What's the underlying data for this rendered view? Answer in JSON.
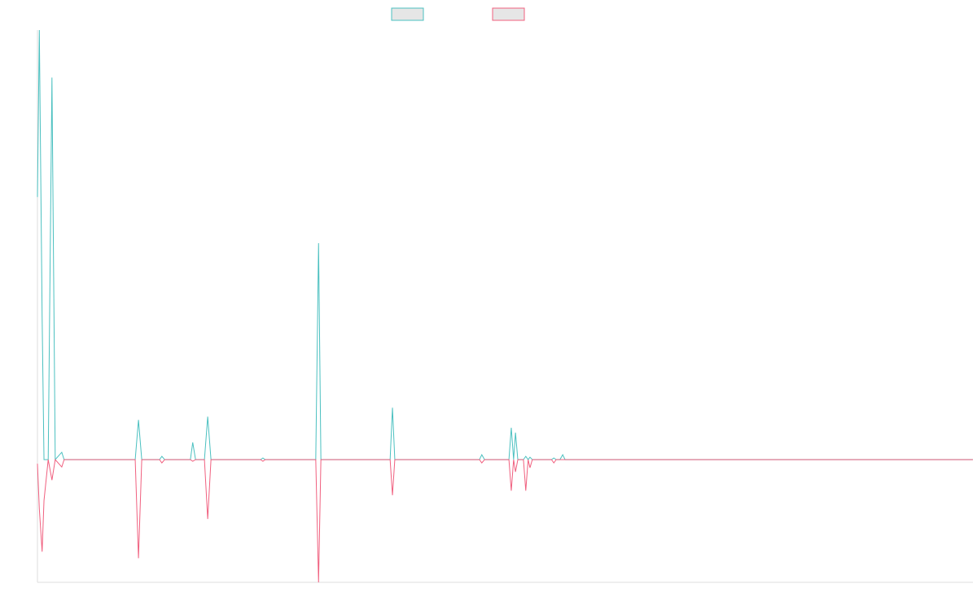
{
  "chart_data": {
    "type": "line",
    "x": [
      0,
      0.4,
      1.0,
      1.4,
      2.3,
      3.1,
      3.8,
      5.2,
      5.7,
      20.9,
      21.6,
      22.3,
      26.1,
      26.6,
      27.2,
      32.7,
      33.2,
      33.8,
      35.7,
      36.4,
      37.1,
      47.7,
      48.2,
      48.7,
      59.5,
      60.1,
      60.6,
      75.4,
      75.9,
      76.4,
      94.5,
      95.0,
      95.6,
      100.8,
      101.3,
      101.8,
      102.2,
      102.7,
      103.9,
      104.4,
      104.9,
      105.3,
      105.8,
      109.9,
      110.4,
      110.9,
      111.7,
      112.3,
      112.8,
      200
    ],
    "series": [
      {
        "color": "#4bc0c0",
        "values": [
          64.2,
          105,
          35,
          0,
          0,
          93.4,
          0,
          1.8,
          0,
          0,
          9.7,
          0,
          0,
          0.8,
          0,
          0,
          4.2,
          0,
          0,
          10.5,
          0,
          0,
          0.4,
          0,
          0,
          52.9,
          0,
          0,
          12.7,
          0,
          0,
          1.2,
          0,
          0,
          7.8,
          0,
          6.6,
          0,
          0,
          0.8,
          0,
          0.6,
          0,
          0,
          0.4,
          0,
          0,
          1.2,
          0,
          0
        ]
      },
      {
        "color": "#f0607f",
        "values": [
          -1,
          -12,
          -22.5,
          -10,
          0,
          -5,
          0,
          -1.8,
          0,
          0,
          -24.1,
          0,
          0,
          -0.8,
          0,
          0,
          -0.4,
          0,
          0,
          -14.5,
          0,
          0,
          -0.4,
          0,
          0,
          -30,
          0,
          0,
          -8.7,
          0,
          0,
          -0.8,
          0,
          0,
          -7.6,
          0,
          -3,
          0,
          0,
          -7.6,
          0,
          -2,
          0,
          0,
          -0.8,
          0,
          0,
          0,
          0,
          0
        ]
      }
    ],
    "xlim": [
      0,
      200
    ],
    "ylim": [
      -30,
      105
    ],
    "legend": "top"
  }
}
